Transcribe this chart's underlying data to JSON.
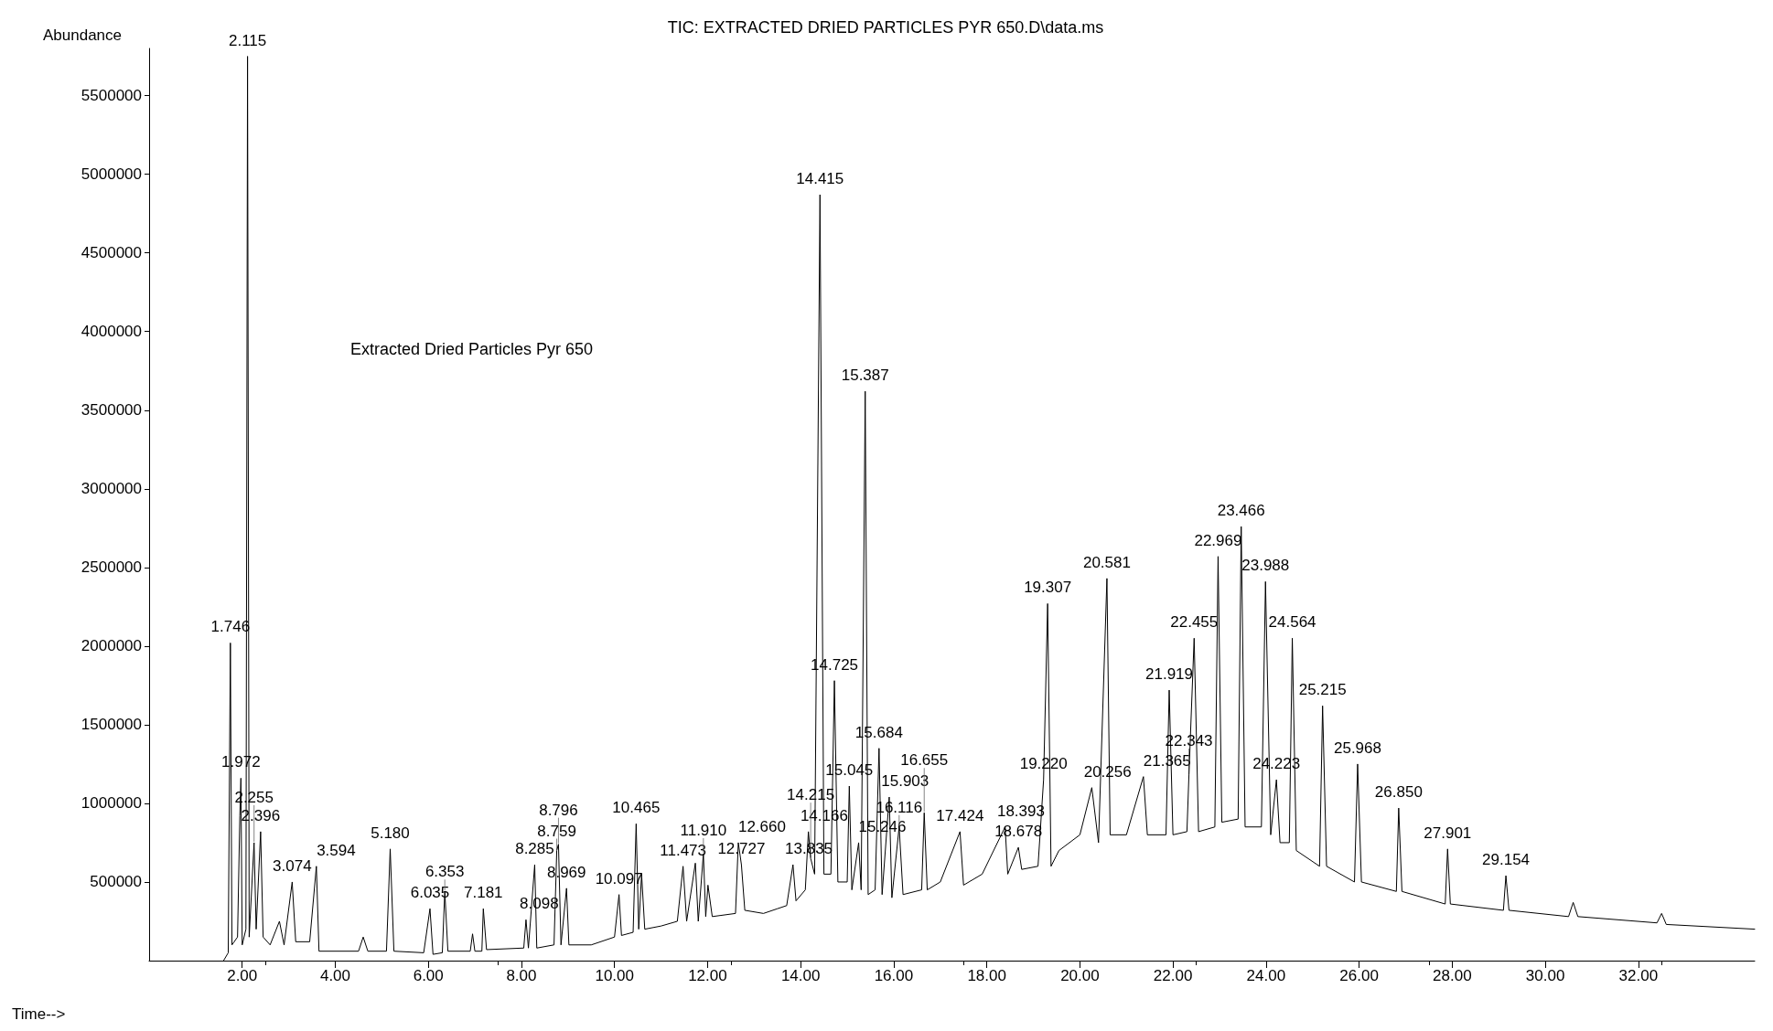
{
  "chart_data": {
    "type": "line",
    "title": "TIC: EXTRACTED DRIED PARTICLES PYR 650.D\\data.ms",
    "xlabel": "Time-->",
    "ylabel": "Abundance",
    "x": [
      1.6,
      1.7,
      1.746,
      1.78,
      1.9,
      1.949,
      1.972,
      2.0,
      2.08,
      2.115,
      2.15,
      2.255,
      2.3,
      2.396,
      2.45,
      2.6,
      2.8,
      2.9,
      3.074,
      3.15,
      3.45,
      3.594,
      3.65,
      4.5,
      4.6,
      4.7,
      5.1,
      5.18,
      5.26,
      5.9,
      6.035,
      6.1,
      6.3,
      6.353,
      6.42,
      6.9,
      6.95,
      7.0,
      7.15,
      7.181,
      7.25,
      8.05,
      8.098,
      8.15,
      8.285,
      8.33,
      8.7,
      8.759,
      8.796,
      8.85,
      8.969,
      9.02,
      9.5,
      10.0,
      10.097,
      10.15,
      10.4,
      10.465,
      10.52,
      10.582,
      10.65,
      11.0,
      11.35,
      11.473,
      11.55,
      11.737,
      11.8,
      11.91,
      11.96,
      12.008,
      12.1,
      12.6,
      12.66,
      12.727,
      12.8,
      13.2,
      13.5,
      13.7,
      13.835,
      13.9,
      14.1,
      14.166,
      14.215,
      14.3,
      14.415,
      14.5,
      14.65,
      14.725,
      14.8,
      15.0,
      15.045,
      15.1,
      15.246,
      15.3,
      15.387,
      15.45,
      15.6,
      15.684,
      15.75,
      15.903,
      15.96,
      16.116,
      16.2,
      16.6,
      16.655,
      16.72,
      17.0,
      17.424,
      17.5,
      17.9,
      18.393,
      18.45,
      18.678,
      18.75,
      19.1,
      19.22,
      19.307,
      19.38,
      19.55,
      20.0,
      20.256,
      20.4,
      20.581,
      20.65,
      21.0,
      21.365,
      21.45,
      21.85,
      21.919,
      22.0,
      22.3,
      22.343,
      22.455,
      22.55,
      22.9,
      22.969,
      23.05,
      23.4,
      23.466,
      23.55,
      23.9,
      23.988,
      24.1,
      24.223,
      24.3,
      24.5,
      24.564,
      24.65,
      25.15,
      25.215,
      25.3,
      25.9,
      25.968,
      26.05,
      26.8,
      26.85,
      26.92,
      27.85,
      27.901,
      27.96,
      29.1,
      29.154,
      29.22,
      30.5,
      30.6,
      30.7,
      32.4,
      32.5,
      32.6,
      34.5
    ],
    "series": [
      {
        "color": "#000000",
        "values": [
          0,
          50000,
          2020000,
          100000,
          150000,
          920000,
          1160000,
          100000,
          200000,
          5750000,
          150000,
          750000,
          200000,
          820000,
          150000,
          100000,
          250000,
          100000,
          500000,
          120000,
          120000,
          600000,
          60000,
          60000,
          150000,
          60000,
          60000,
          710000,
          60000,
          50000,
          330000,
          40000,
          50000,
          440000,
          60000,
          60000,
          170000,
          60000,
          60000,
          330000,
          70000,
          80000,
          260000,
          80000,
          610000,
          80000,
          100000,
          700000,
          740000,
          100000,
          460000,
          100000,
          100000,
          150000,
          420000,
          160000,
          180000,
          870000,
          200000,
          550000,
          200000,
          220000,
          250000,
          600000,
          250000,
          620000,
          250000,
          680000,
          280000,
          480000,
          280000,
          300000,
          750000,
          610000,
          320000,
          300000,
          330000,
          350000,
          610000,
          380000,
          450000,
          820000,
          650000,
          550000,
          4870000,
          550000,
          550000,
          1780000,
          500000,
          500000,
          1110000,
          450000,
          750000,
          450000,
          3620000,
          420000,
          450000,
          1350000,
          420000,
          1040000,
          400000,
          850000,
          420000,
          450000,
          940000,
          450000,
          500000,
          820000,
          480000,
          550000,
          850000,
          550000,
          720000,
          580000,
          600000,
          1150000,
          2270000,
          600000,
          700000,
          800000,
          1100000,
          750000,
          2430000,
          800000,
          800000,
          1170000,
          800000,
          800000,
          1720000,
          800000,
          820000,
          1180000,
          2050000,
          820000,
          850000,
          2570000,
          880000,
          900000,
          2760000,
          850000,
          850000,
          2410000,
          800000,
          1150000,
          750000,
          750000,
          2050000,
          700000,
          600000,
          1620000,
          600000,
          500000,
          1250000,
          500000,
          440000,
          970000,
          440000,
          360000,
          710000,
          360000,
          320000,
          540000,
          320000,
          280000,
          370000,
          280000,
          240000,
          300000,
          230000,
          200000
        ]
      }
    ],
    "xlim": [
      0,
      34.5
    ],
    "xticks": [
      {
        "value": 2,
        "label": "2.00"
      },
      {
        "value": 4,
        "label": "4.00"
      },
      {
        "value": 6,
        "label": "6.00"
      },
      {
        "value": 8,
        "label": "8.00"
      },
      {
        "value": 10,
        "label": "10.00"
      },
      {
        "value": 12,
        "label": "12.00"
      },
      {
        "value": 14,
        "label": "14.00"
      },
      {
        "value": 16,
        "label": "16.00"
      },
      {
        "value": 18,
        "label": "18.00"
      },
      {
        "value": 20,
        "label": "20.00"
      },
      {
        "value": 22,
        "label": "22.00"
      },
      {
        "value": 24,
        "label": "24.00"
      },
      {
        "value": 26,
        "label": "26.00"
      },
      {
        "value": 28,
        "label": "28.00"
      },
      {
        "value": 30,
        "label": "30.00"
      },
      {
        "value": 32,
        "label": "32.00"
      }
    ],
    "ylim": [
      0,
      5800000
    ],
    "yticks": [
      500000,
      1000000,
      1500000,
      2000000,
      2500000,
      3000000,
      3500000,
      4000000,
      4500000,
      5000000,
      5500000
    ],
    "grid": false,
    "marker": "none",
    "line_style": "solid",
    "annotations": [
      "Extracted Dried Particles Pyr 650",
      {
        "text": "1.746",
        "x": 1.746,
        "y": 2020000
      },
      {
        "text": "1.972",
        "x": 1.972,
        "y": 1160000
      },
      {
        "text": "2.115",
        "x": 2.115,
        "y": 5750000
      },
      {
        "text": "2.396",
        "x": 2.396,
        "y": 820000
      },
      {
        "text": "2.255",
        "x": 2.255,
        "y": 750000
      },
      {
        "text": "3.074",
        "x": 3.074,
        "y": 500000
      },
      {
        "text": "3.594",
        "x": 3.594,
        "y": 600000
      },
      {
        "text": "5.180",
        "x": 5.18,
        "y": 710000
      },
      {
        "text": "6.035",
        "x": 6.035,
        "y": 330000
      },
      {
        "text": "6.353",
        "x": 6.353,
        "y": 440000
      },
      {
        "text": "7.181",
        "x": 7.181,
        "y": 330000
      },
      {
        "text": "8.098",
        "x": 8.098,
        "y": 260000
      },
      {
        "text": "8.285",
        "x": 8.285,
        "y": 610000
      },
      {
        "text": "8.759",
        "x": 8.759,
        "y": 700000
      },
      {
        "text": "8.796",
        "x": 8.796,
        "y": 740000
      },
      {
        "text": "8.969",
        "x": 8.969,
        "y": 460000
      },
      {
        "text": "10.097",
        "x": 10.097,
        "y": 420000
      },
      {
        "text": "10.465",
        "x": 10.465,
        "y": 870000
      },
      {
        "text": "11.473",
        "x": 11.473,
        "y": 600000
      },
      {
        "text": "11.910",
        "x": 11.91,
        "y": 680000
      },
      {
        "text": "12.660",
        "x": 12.66,
        "y": 750000
      },
      {
        "text": "12.727",
        "x": 12.727,
        "y": 610000
      },
      {
        "text": "13.835",
        "x": 13.835,
        "y": 610000
      },
      {
        "text": "14.166",
        "x": 14.166,
        "y": 820000
      },
      {
        "text": "14.215",
        "x": 14.215,
        "y": 650000
      },
      {
        "text": "14.415",
        "x": 14.415,
        "y": 4870000
      },
      {
        "text": "14.725",
        "x": 14.725,
        "y": 1780000
      },
      {
        "text": "15.045",
        "x": 15.045,
        "y": 1110000
      },
      {
        "text": "15.246",
        "x": 15.246,
        "y": 750000
      },
      {
        "text": "15.387",
        "x": 15.387,
        "y": 3620000
      },
      {
        "text": "15.684",
        "x": 15.684,
        "y": 1350000
      },
      {
        "text": "15.903",
        "x": 15.903,
        "y": 1040000
      },
      {
        "text": "16.116",
        "x": 16.116,
        "y": 850000
      },
      {
        "text": "16.655",
        "x": 16.655,
        "y": 940000
      },
      {
        "text": "17.424",
        "x": 17.424,
        "y": 820000
      },
      {
        "text": "18.393",
        "x": 18.393,
        "y": 850000
      },
      {
        "text": "18.678",
        "x": 18.678,
        "y": 720000
      },
      {
        "text": "19.220",
        "x": 19.22,
        "y": 1150000
      },
      {
        "text": "19.307",
        "x": 19.307,
        "y": 2270000
      },
      {
        "text": "20.256",
        "x": 20.256,
        "y": 1100000
      },
      {
        "text": "20.581",
        "x": 20.581,
        "y": 2430000
      },
      {
        "text": "21.365",
        "x": 21.365,
        "y": 1170000
      },
      {
        "text": "21.919",
        "x": 21.919,
        "y": 1720000
      },
      {
        "text": "22.343",
        "x": 22.343,
        "y": 1180000
      },
      {
        "text": "22.455",
        "x": 22.455,
        "y": 2050000
      },
      {
        "text": "22.969",
        "x": 22.969,
        "y": 2570000
      },
      {
        "text": "23.466",
        "x": 23.466,
        "y": 2760000
      },
      {
        "text": "23.988",
        "x": 23.988,
        "y": 2410000
      },
      {
        "text": "24.223",
        "x": 24.223,
        "y": 1150000
      },
      {
        "text": "24.564",
        "x": 24.564,
        "y": 2050000
      },
      {
        "text": "25.215",
        "x": 25.215,
        "y": 1620000
      },
      {
        "text": "25.968",
        "x": 25.968,
        "y": 1250000
      },
      {
        "text": "26.850",
        "x": 26.85,
        "y": 970000
      },
      {
        "text": "27.901",
        "x": 27.901,
        "y": 710000
      },
      {
        "text": "29.154",
        "x": 29.154,
        "y": 540000
      }
    ]
  }
}
